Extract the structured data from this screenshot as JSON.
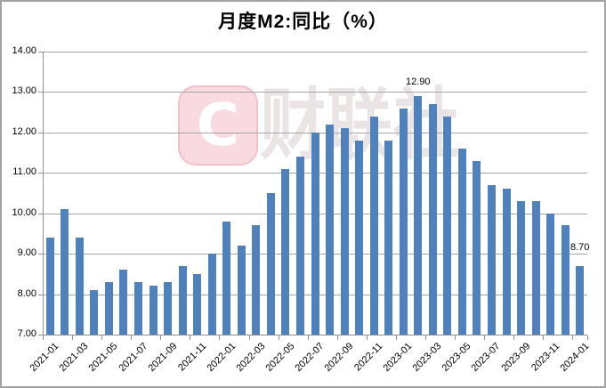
{
  "window": {
    "background": "#ffffff",
    "border_color": "#a3a3a3"
  },
  "chart_data": {
    "type": "bar",
    "title": "月度M2:同比（%）",
    "categories": [
      "2021-01",
      "2021-02",
      "2021-03",
      "2021-04",
      "2021-05",
      "2021-06",
      "2021-07",
      "2021-08",
      "2021-09",
      "2021-10",
      "2021-11",
      "2021-12",
      "2022-01",
      "2022-02",
      "2022-03",
      "2022-04",
      "2022-05",
      "2022-06",
      "2022-07",
      "2022-08",
      "2022-09",
      "2022-10",
      "2022-11",
      "2022-12",
      "2023-01",
      "2023-02",
      "2023-03",
      "2023-04",
      "2023-05",
      "2023-06",
      "2023-07",
      "2023-08",
      "2023-09",
      "2023-10",
      "2023-11",
      "2023-12",
      "2024-01"
    ],
    "values": [
      9.4,
      10.1,
      9.4,
      8.1,
      8.3,
      8.6,
      8.3,
      8.2,
      8.3,
      8.7,
      8.5,
      9.0,
      9.8,
      9.2,
      9.7,
      10.5,
      11.1,
      11.4,
      12.0,
      12.2,
      12.1,
      11.8,
      12.4,
      11.8,
      12.6,
      12.9,
      12.7,
      12.4,
      11.6,
      11.3,
      10.7,
      10.6,
      10.3,
      10.3,
      10.0,
      9.7,
      8.7
    ],
    "ylim": [
      7,
      14
    ],
    "yticks": [
      "14.00",
      "13.00",
      "12.00",
      "11.00",
      "10.00",
      "9.00",
      "8.00",
      "7.00"
    ],
    "xtick_every": 2,
    "grid": true,
    "legend": false,
    "bar_color": "#4f81bd",
    "gridline_color": "#a6a6a6",
    "axis_color": "#8f8f8f",
    "label_color": "#000000",
    "data_labels": [
      {
        "category": "2023-02",
        "index": 25,
        "text": "12.90"
      },
      {
        "category": "2024-01",
        "index": 36,
        "text": "8.70"
      }
    ]
  },
  "watermark": {
    "logo_letter": "C",
    "text": "财联社",
    "logo_bg": "#f8dae0",
    "logo_border": "#f3c0ca",
    "logo_letter_color": "#ffffff",
    "text_color": "#eae4e5"
  }
}
